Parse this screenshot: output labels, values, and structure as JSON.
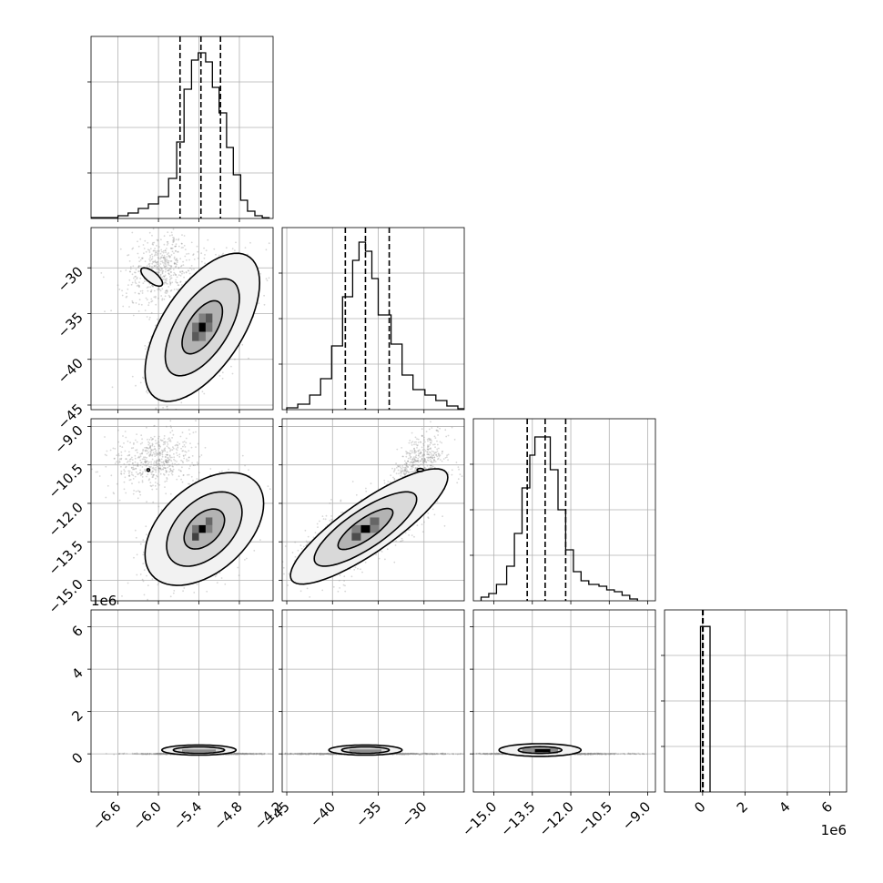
{
  "chart_data": {
    "type": "corner",
    "title": "",
    "parameters": [
      {
        "range": [
          -7.0,
          -4.3
        ],
        "ticks": [
          -6.6,
          -6.0,
          -5.4,
          -4.8,
          -4.2
        ],
        "tick_labels": [
          "−6.6",
          "−6.0",
          "−5.4",
          "−4.8",
          "−4.2"
        ],
        "offset_label": "",
        "quantiles": [
          -5.68,
          -5.37,
          -5.08
        ]
      },
      {
        "range": [
          -45.5,
          -25.6
        ],
        "ticks": [
          -45,
          -40,
          -35,
          -30
        ],
        "tick_labels": [
          "−45",
          "−40",
          "−35",
          "−30"
        ],
        "offset_label": "",
        "quantiles": [
          -38.6,
          -36.4,
          -33.8
        ]
      },
      {
        "range": [
          -15.8,
          -8.7
        ],
        "ticks": [
          -15.0,
          -13.5,
          -12.0,
          -10.5,
          -9.0
        ],
        "tick_labels": [
          "−15.0",
          "−13.5",
          "−12.0",
          "−10.5",
          "−9.0"
        ],
        "offset_label": "",
        "quantiles": [
          -13.7,
          -13.0,
          -12.2
        ]
      },
      {
        "range": [
          -1.8,
          6.8
        ],
        "ticks": [
          0,
          2,
          4,
          6
        ],
        "tick_labels": [
          "0",
          "2",
          "4",
          "6"
        ],
        "offset_label": "1e6",
        "quantiles": [
          0.0,
          0.0,
          0.02
        ]
      }
    ],
    "histograms": [
      {
        "param": 0,
        "y_max": 1.0,
        "bins": [
          {
            "x0": -7.0,
            "x1": -6.6,
            "h": 0.005
          },
          {
            "x0": -6.6,
            "x1": -6.45,
            "h": 0.015
          },
          {
            "x0": -6.45,
            "x1": -6.3,
            "h": 0.03
          },
          {
            "x0": -6.3,
            "x1": -6.15,
            "h": 0.055
          },
          {
            "x0": -6.15,
            "x1": -6.0,
            "h": 0.08
          },
          {
            "x0": -6.0,
            "x1": -5.85,
            "h": 0.12
          },
          {
            "x0": -5.85,
            "x1": -5.73,
            "h": 0.22
          },
          {
            "x0": -5.73,
            "x1": -5.62,
            "h": 0.42
          },
          {
            "x0": -5.62,
            "x1": -5.51,
            "h": 0.71
          },
          {
            "x0": -5.51,
            "x1": -5.41,
            "h": 0.87
          },
          {
            "x0": -5.41,
            "x1": -5.3,
            "h": 0.91
          },
          {
            "x0": -5.3,
            "x1": -5.2,
            "h": 0.86
          },
          {
            "x0": -5.2,
            "x1": -5.1,
            "h": 0.72
          },
          {
            "x0": -5.1,
            "x1": -4.99,
            "h": 0.58
          },
          {
            "x0": -4.99,
            "x1": -4.89,
            "h": 0.39
          },
          {
            "x0": -4.89,
            "x1": -4.78,
            "h": 0.24
          },
          {
            "x0": -4.78,
            "x1": -4.68,
            "h": 0.1
          },
          {
            "x0": -4.68,
            "x1": -4.57,
            "h": 0.04
          },
          {
            "x0": -4.57,
            "x1": -4.46,
            "h": 0.015
          },
          {
            "x0": -4.46,
            "x1": -4.36,
            "h": 0.004
          }
        ]
      },
      {
        "param": 1,
        "y_max": 1.0,
        "bins": [
          {
            "x0": -45.0,
            "x1": -43.8,
            "h": 0.01
          },
          {
            "x0": -43.8,
            "x1": -42.5,
            "h": 0.03
          },
          {
            "x0": -42.5,
            "x1": -41.3,
            "h": 0.08
          },
          {
            "x0": -41.3,
            "x1": -40.1,
            "h": 0.17
          },
          {
            "x0": -40.1,
            "x1": -38.9,
            "h": 0.35
          },
          {
            "x0": -38.9,
            "x1": -37.8,
            "h": 0.62
          },
          {
            "x0": -37.8,
            "x1": -37.1,
            "h": 0.82
          },
          {
            "x0": -37.1,
            "x1": -36.4,
            "h": 0.92
          },
          {
            "x0": -36.4,
            "x1": -35.7,
            "h": 0.87
          },
          {
            "x0": -35.7,
            "x1": -35.0,
            "h": 0.72
          },
          {
            "x0": -35.0,
            "x1": -33.6,
            "h": 0.52
          },
          {
            "x0": -33.6,
            "x1": -32.4,
            "h": 0.36
          },
          {
            "x0": -32.4,
            "x1": -31.2,
            "h": 0.19
          },
          {
            "x0": -31.2,
            "x1": -29.9,
            "h": 0.11
          },
          {
            "x0": -29.9,
            "x1": -28.7,
            "h": 0.08
          },
          {
            "x0": -28.7,
            "x1": -27.5,
            "h": 0.05
          },
          {
            "x0": -27.5,
            "x1": -26.3,
            "h": 0.02
          },
          {
            "x0": -26.3,
            "x1": -25.6,
            "h": 0.005
          }
        ]
      },
      {
        "param": 2,
        "y_max": 1.0,
        "bins": [
          {
            "x0": -15.5,
            "x1": -15.2,
            "h": 0.02
          },
          {
            "x0": -15.2,
            "x1": -14.9,
            "h": 0.04
          },
          {
            "x0": -14.9,
            "x1": -14.5,
            "h": 0.09
          },
          {
            "x0": -14.5,
            "x1": -14.2,
            "h": 0.19
          },
          {
            "x0": -14.2,
            "x1": -13.9,
            "h": 0.37
          },
          {
            "x0": -13.9,
            "x1": -13.6,
            "h": 0.62
          },
          {
            "x0": -13.6,
            "x1": -13.4,
            "h": 0.8
          },
          {
            "x0": -13.4,
            "x1": -13.1,
            "h": 0.9
          },
          {
            "x0": -13.1,
            "x1": -12.8,
            "h": 0.9
          },
          {
            "x0": -12.8,
            "x1": -12.5,
            "h": 0.72
          },
          {
            "x0": -12.5,
            "x1": -12.2,
            "h": 0.5
          },
          {
            "x0": -12.2,
            "x1": -11.9,
            "h": 0.28
          },
          {
            "x0": -11.9,
            "x1": -11.6,
            "h": 0.16
          },
          {
            "x0": -11.6,
            "x1": -11.3,
            "h": 0.11
          },
          {
            "x0": -11.3,
            "x1": -10.9,
            "h": 0.09
          },
          {
            "x0": -10.9,
            "x1": -10.6,
            "h": 0.08
          },
          {
            "x0": -10.6,
            "x1": -10.3,
            "h": 0.06
          },
          {
            "x0": -10.3,
            "x1": -10.0,
            "h": 0.05
          },
          {
            "x0": -10.0,
            "x1": -9.7,
            "h": 0.03
          },
          {
            "x0": -9.7,
            "x1": -9.4,
            "h": 0.01
          }
        ]
      },
      {
        "param": 3,
        "y_max": 6.6,
        "bins": [
          {
            "x0": -0.1,
            "x1": 0.35,
            "h": 6.0
          }
        ]
      }
    ],
    "scatter_panels": [
      {
        "x_param": 0,
        "y_param": 1,
        "clusters": [
          {
            "cx": -5.35,
            "cy": -36.5,
            "sx": 0.33,
            "sy": 3.2,
            "rho": 0.6,
            "n": 2000
          },
          {
            "cx": -5.95,
            "cy": -30.2,
            "sx": 0.28,
            "sy": 2.0,
            "rho": 0.2,
            "n": 550
          }
        ],
        "contours": [
          {
            "cx": -5.35,
            "cy": -36.5,
            "rx": 0.85,
            "ry": 8.1,
            "rho": 0.6
          },
          {
            "cx": -5.35,
            "cy": -36.5,
            "rx": 0.55,
            "ry": 5.3,
            "rho": 0.6
          },
          {
            "cx": -5.35,
            "cy": -36.5,
            "rx": 0.3,
            "ry": 2.9,
            "rho": 0.6
          },
          {
            "cx": -6.1,
            "cy": -31.0,
            "rx": 0.16,
            "ry": 1.0,
            "rho": -0.7
          }
        ],
        "density_cells": [
          {
            "x": -5.35,
            "y": -36.5,
            "w": 0.1,
            "h": 1.0,
            "v": 1.0
          },
          {
            "x": -5.25,
            "y": -35.5,
            "w": 0.1,
            "h": 1.0,
            "v": 0.65
          },
          {
            "x": -5.45,
            "y": -37.5,
            "w": 0.1,
            "h": 1.0,
            "v": 0.65
          },
          {
            "x": -5.45,
            "y": -36.5,
            "w": 0.1,
            "h": 1.0,
            "v": 0.55
          },
          {
            "x": -5.25,
            "y": -36.5,
            "w": 0.1,
            "h": 1.0,
            "v": 0.55
          },
          {
            "x": -5.35,
            "y": -35.5,
            "w": 0.1,
            "h": 1.0,
            "v": 0.5
          },
          {
            "x": -5.35,
            "y": -37.5,
            "w": 0.1,
            "h": 1.0,
            "v": 0.5
          }
        ]
      },
      {
        "x_param": 0,
        "y_param": 2,
        "clusters": [
          {
            "cx": -5.35,
            "cy": -13.0,
            "sx": 0.33,
            "sy": 0.85,
            "rho": 0.5,
            "n": 2000
          },
          {
            "cx": -6.05,
            "cy": -10.3,
            "sx": 0.3,
            "sy": 0.6,
            "rho": 0.2,
            "n": 550
          }
        ],
        "contours": [
          {
            "cx": -5.32,
            "cy": -13.0,
            "rx": 0.88,
            "ry": 2.2,
            "rho": 0.45
          },
          {
            "cx": -5.32,
            "cy": -13.0,
            "rx": 0.56,
            "ry": 1.45,
            "rho": 0.45
          },
          {
            "cx": -5.32,
            "cy": -13.0,
            "rx": 0.3,
            "ry": 0.78,
            "rho": 0.45
          },
          {
            "cx": -6.15,
            "cy": -10.7,
            "rx": 0.02,
            "ry": 0.05,
            "rho": 0.0
          }
        ],
        "density_cells": [
          {
            "x": -5.35,
            "y": -13.0,
            "w": 0.1,
            "h": 0.3,
            "v": 1.0
          },
          {
            "x": -5.45,
            "y": -13.3,
            "w": 0.1,
            "h": 0.3,
            "v": 0.75
          },
          {
            "x": -5.25,
            "y": -12.7,
            "w": 0.1,
            "h": 0.3,
            "v": 0.6
          },
          {
            "x": -5.45,
            "y": -13.0,
            "w": 0.1,
            "h": 0.3,
            "v": 0.55
          },
          {
            "x": -5.25,
            "y": -13.0,
            "w": 0.1,
            "h": 0.3,
            "v": 0.5
          }
        ]
      },
      {
        "x_param": 1,
        "y_param": 2,
        "clusters": [
          {
            "cx": -36.4,
            "cy": -13.0,
            "sx": 3.2,
            "sy": 0.85,
            "rho": 0.75,
            "n": 2000
          },
          {
            "cx": -30.6,
            "cy": -10.5,
            "sx": 1.5,
            "sy": 0.7,
            "rho": 0.6,
            "n": 550
          }
        ],
        "contours": [
          {
            "cx": -36.0,
            "cy": -12.9,
            "rx": 8.6,
            "ry": 2.25,
            "rho": 0.85
          },
          {
            "cx": -36.4,
            "cy": -13.0,
            "rx": 5.6,
            "ry": 1.45,
            "rho": 0.8
          },
          {
            "cx": -36.4,
            "cy": -13.0,
            "rx": 3.0,
            "ry": 0.8,
            "rho": 0.8
          },
          {
            "cx": -30.4,
            "cy": -10.7,
            "rx": 0.35,
            "ry": 0.06,
            "rho": 0.0
          }
        ],
        "density_cells": [
          {
            "x": -36.4,
            "y": -13.0,
            "w": 1.0,
            "h": 0.3,
            "v": 1.0
          },
          {
            "x": -37.4,
            "y": -13.3,
            "w": 1.0,
            "h": 0.3,
            "v": 0.7
          },
          {
            "x": -35.4,
            "y": -12.7,
            "w": 1.0,
            "h": 0.3,
            "v": 0.6
          },
          {
            "x": -37.4,
            "y": -13.0,
            "w": 1.0,
            "h": 0.3,
            "v": 0.5
          },
          {
            "x": -35.4,
            "y": -13.0,
            "w": 1.0,
            "h": 0.3,
            "v": 0.5
          }
        ]
      },
      {
        "x_param": 0,
        "y_param": 3,
        "clusters": [
          {
            "cx": -5.35,
            "cy": 0.0,
            "sx": 0.45,
            "sy": 0.012,
            "rho": 0.0,
            "n": 1200
          }
        ],
        "contours": [
          {
            "cx": -5.4,
            "cy": 0.18,
            "rx": 0.55,
            "ry": 0.24,
            "rho": 0.0
          },
          {
            "cx": -5.4,
            "cy": 0.18,
            "rx": 0.38,
            "ry": 0.15,
            "rho": 0.0
          }
        ],
        "density_cells": [
          {
            "x": -5.4,
            "y": 0.15,
            "w": 0.5,
            "h": 0.12,
            "v": 0.45
          }
        ]
      },
      {
        "x_param": 1,
        "y_param": 3,
        "clusters": [
          {
            "cx": -36.4,
            "cy": 0.0,
            "sx": 4.5,
            "sy": 0.012,
            "rho": 0.0,
            "n": 1200
          }
        ],
        "contours": [
          {
            "cx": -36.4,
            "cy": 0.18,
            "rx": 4.0,
            "ry": 0.24,
            "rho": 0.0
          },
          {
            "cx": -36.4,
            "cy": 0.18,
            "rx": 2.6,
            "ry": 0.15,
            "rho": 0.0
          }
        ],
        "density_cells": [
          {
            "x": -36.4,
            "y": 0.15,
            "w": 3.5,
            "h": 0.12,
            "v": 0.45
          }
        ]
      },
      {
        "x_param": 2,
        "y_param": 3,
        "clusters": [
          {
            "cx": -13.0,
            "cy": 0.0,
            "sx": 1.5,
            "sy": 0.012,
            "rho": 0.0,
            "n": 1200
          }
        ],
        "contours": [
          {
            "cx": -13.2,
            "cy": 0.18,
            "rx": 1.6,
            "ry": 0.3,
            "rho": 0.0
          },
          {
            "cx": -13.2,
            "cy": 0.18,
            "rx": 0.85,
            "ry": 0.16,
            "rho": 0.0
          }
        ],
        "density_cells": [
          {
            "x": -13.2,
            "y": 0.15,
            "w": 1.4,
            "h": 0.26,
            "v": 0.45
          },
          {
            "x": -13.1,
            "y": 0.15,
            "w": 0.6,
            "h": 0.14,
            "v": 1.0
          }
        ]
      }
    ],
    "grid": true,
    "legend": "none",
    "colors": {
      "line": "#000000",
      "grid": "#b0b0b0",
      "points": "#8c8c8c"
    }
  }
}
